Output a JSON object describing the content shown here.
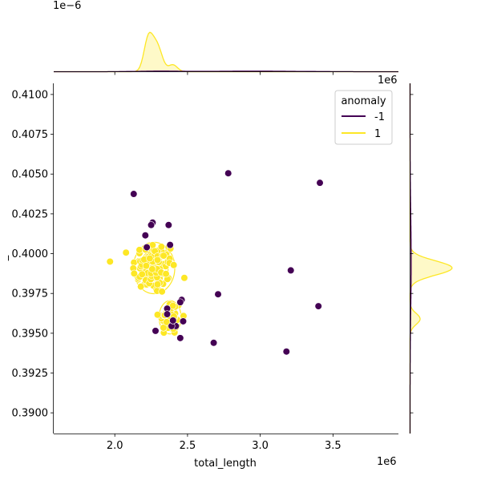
{
  "chart_data": {
    "type": "scatter",
    "kind": "jointplot",
    "xlabel": "total_length",
    "ylabel": "_",
    "x_offset_label": "1e6",
    "y_offset_label": "1e6",
    "top_marginal_offset_label": "1e−6",
    "xlim": [
      1.58,
      3.95
    ],
    "ylim": [
      0.3887,
      0.4107
    ],
    "x_ticks": [
      2.0,
      2.5,
      3.0,
      3.5
    ],
    "x_tick_labels": [
      "2.0",
      "2.5",
      "3.0",
      "3.5"
    ],
    "y_ticks": [
      0.39,
      0.3925,
      0.395,
      0.3975,
      0.4,
      0.4025,
      0.405,
      0.4075,
      0.41
    ],
    "y_tick_labels": [
      "0.3900",
      "0.3925",
      "0.3950",
      "0.3975",
      "0.4000",
      "0.4025",
      "0.4050",
      "0.4075",
      "0.4100"
    ],
    "grid": false,
    "legend": {
      "title": "anomaly",
      "placement": "top-right",
      "entries": [
        {
          "label": "-1",
          "color": "#440154"
        },
        {
          "label": "1",
          "color": "#fde725"
        }
      ]
    },
    "series": [
      {
        "name": "-1",
        "color": "#440154",
        "points": [
          [
            2.78,
            0.40505
          ],
          [
            3.41,
            0.40445
          ],
          [
            2.13,
            0.40375
          ],
          [
            3.21,
            0.39895
          ],
          [
            2.71,
            0.39745
          ],
          [
            3.4,
            0.3967
          ],
          [
            2.68,
            0.3944
          ],
          [
            3.18,
            0.39385
          ],
          [
            2.26,
            0.40195
          ],
          [
            2.25,
            0.4018
          ],
          [
            2.37,
            0.4018
          ],
          [
            2.21,
            0.40115
          ],
          [
            2.22,
            0.4004
          ],
          [
            2.38,
            0.40055
          ],
          [
            2.36,
            0.39655
          ],
          [
            2.36,
            0.3962
          ],
          [
            2.46,
            0.3971
          ],
          [
            2.45,
            0.39695
          ],
          [
            2.47,
            0.39575
          ],
          [
            2.42,
            0.39545
          ],
          [
            2.39,
            0.39545
          ],
          [
            2.28,
            0.39515
          ],
          [
            2.45,
            0.3947
          ],
          [
            2.4,
            0.3958
          ]
        ]
      },
      {
        "name": "1",
        "color": "#fde725",
        "clusters": [
          {
            "center": [
              2.27,
              0.3991
            ],
            "spread": [
              0.075,
              0.00085
            ],
            "count": 110
          },
          {
            "center": [
              2.38,
              0.396
            ],
            "spread": [
              0.04,
              0.00055
            ],
            "count": 40
          }
        ]
      }
    ],
    "marginal_x": {
      "series": [
        {
          "name": "1",
          "color": "#fde725",
          "components": [
            [
              2.23,
              0.03,
              0.55
            ],
            [
              2.29,
              0.035,
              0.45
            ],
            [
              2.4,
              0.03,
              0.12
            ]
          ]
        },
        {
          "name": "-1",
          "color": "#440154",
          "components": [
            [
              2.3,
              0.15,
              0.01
            ],
            [
              2.95,
              0.3,
              0.01
            ]
          ]
        }
      ]
    },
    "marginal_y": {
      "series": [
        {
          "name": "1",
          "color": "#fde725",
          "components": [
            [
              0.3991,
              0.00045,
              0.75
            ],
            [
              0.3959,
              0.00035,
              0.18
            ]
          ]
        },
        {
          "name": "-1",
          "color": "#440154",
          "components": [
            [
              0.3995,
              0.003,
              0.02
            ]
          ]
        }
      ]
    }
  }
}
